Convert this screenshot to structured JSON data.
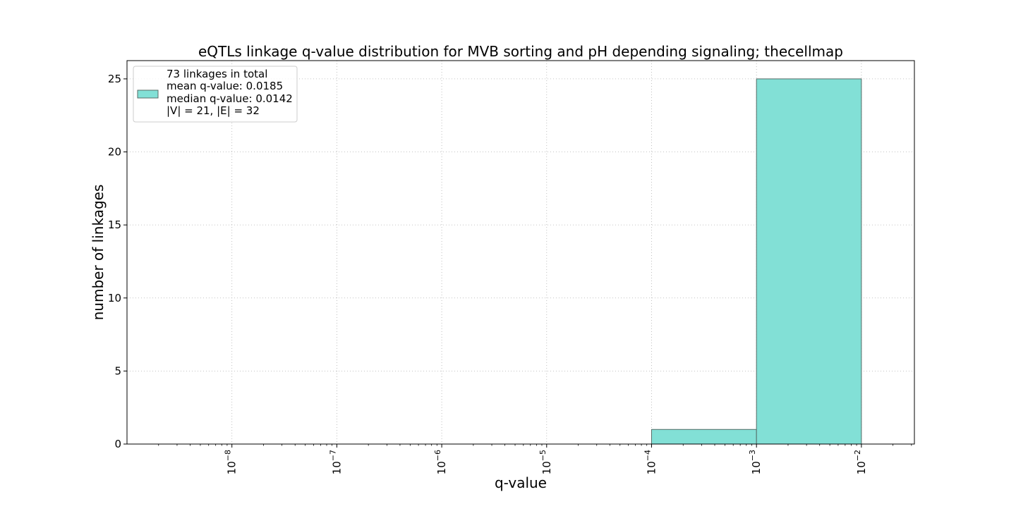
{
  "chart_data": {
    "type": "bar",
    "title": "eQTLs linkage q-value distribution for MVB sorting and pH depending signaling; thecellmap",
    "xlabel": "q-value",
    "ylabel": "number of linkages",
    "x_scale": "log10",
    "xlim": [
      1e-09,
      0.032
    ],
    "ylim": [
      0,
      26.25
    ],
    "grid": true,
    "grid_style": "dotted",
    "x_tick_exponents": [
      -8,
      -7,
      -6,
      -5,
      -4,
      -3,
      -2
    ],
    "x_tick_base": "10",
    "y_ticks": [
      "0",
      "5",
      "10",
      "15",
      "20",
      "25"
    ],
    "bins": [
      {
        "x_start": 0.0001,
        "x_end": 0.001,
        "count": 1
      },
      {
        "x_start": 0.001,
        "x_end": 0.01,
        "count": 25
      }
    ],
    "bar_color": "#82e0d6",
    "bar_edge_color": "#556b66",
    "legend": {
      "position": "upper-left",
      "lines": [
        "73 linkages in total",
        "mean q-value: 0.0185",
        "median q-value: 0.0142",
        "|V| = 21, |E| = 32"
      ]
    }
  }
}
